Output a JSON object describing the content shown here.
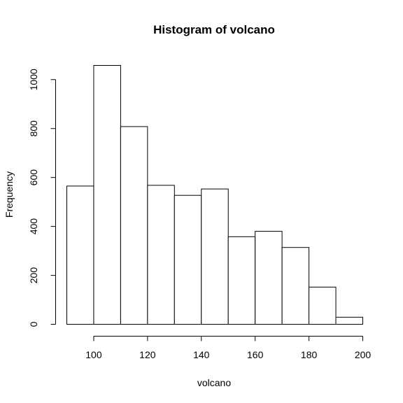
{
  "chart_data": {
    "type": "bar",
    "title": "Histogram of volcano",
    "xlabel": "volcano",
    "ylabel": "Frequency",
    "bin_edges": [
      90,
      100,
      110,
      120,
      130,
      140,
      150,
      160,
      170,
      180,
      190,
      200
    ],
    "values": [
      565,
      1058,
      808,
      568,
      527,
      553,
      358,
      380,
      314,
      152,
      29
    ],
    "xlim": [
      90,
      200
    ],
    "ylim": [
      0,
      1058
    ],
    "x_ticks": [
      100,
      120,
      140,
      160,
      180,
      200
    ],
    "y_ticks": [
      0,
      200,
      400,
      600,
      800,
      1000
    ],
    "x_tick_labels": [
      "100",
      "120",
      "140",
      "160",
      "180",
      "200"
    ],
    "y_tick_labels": [
      "0",
      "200",
      "400",
      "600",
      "800",
      "1000"
    ],
    "bar_fill": "#ffffff",
    "bar_stroke": "#000000",
    "grid": false,
    "legend": "none"
  }
}
